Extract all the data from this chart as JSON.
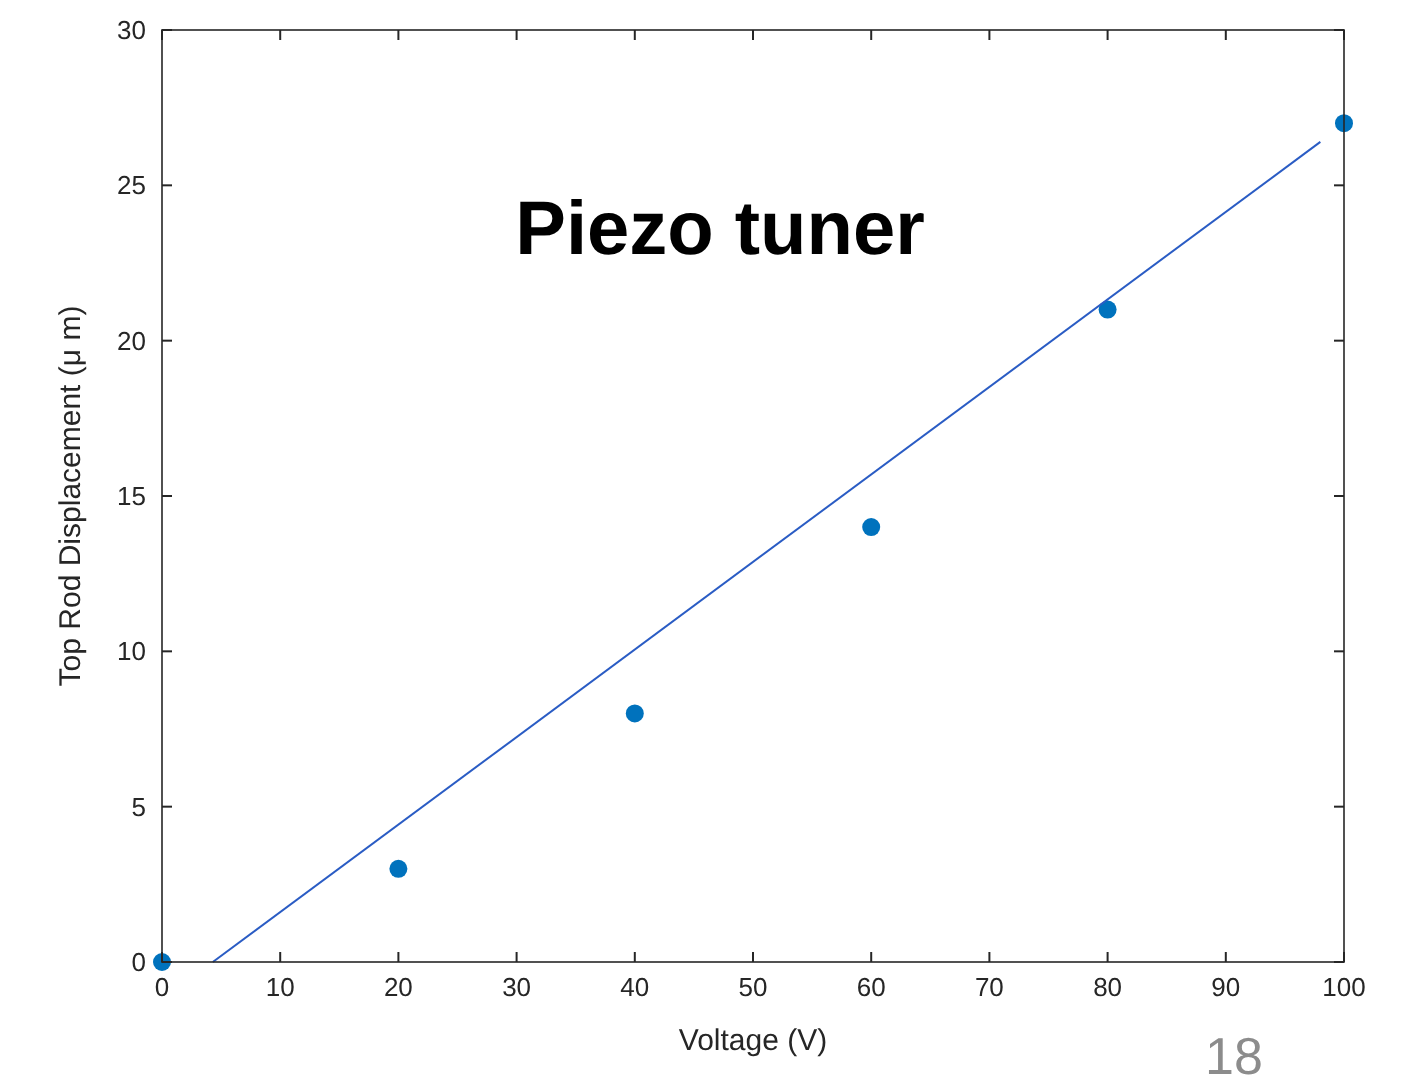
{
  "chart_data": {
    "type": "scatter",
    "title": "Piezo tuner",
    "xlabel": "Voltage (V)",
    "ylabel": "Top Rod Displacement (μ m)",
    "xlim": [
      0,
      100
    ],
    "xticks": [
      0,
      10,
      20,
      30,
      40,
      50,
      60,
      70,
      80,
      90,
      100
    ],
    "ylim": [
      0,
      30
    ],
    "yticks": [
      0,
      5,
      10,
      15,
      20,
      25,
      30
    ],
    "grid": false,
    "marker": "circle",
    "series": [
      {
        "color": "#0072bd",
        "x": [
          0,
          20,
          40,
          60,
          80,
          100
        ],
        "values": [
          0,
          3,
          8,
          14,
          21,
          27
        ]
      },
      {
        "type": "line",
        "color": "#2a5cc4",
        "marker": "none",
        "line_style": "solid",
        "x": [
          4.3,
          98
        ],
        "values": [
          0,
          26.4
        ]
      }
    ],
    "annotations": [
      "18"
    ]
  }
}
